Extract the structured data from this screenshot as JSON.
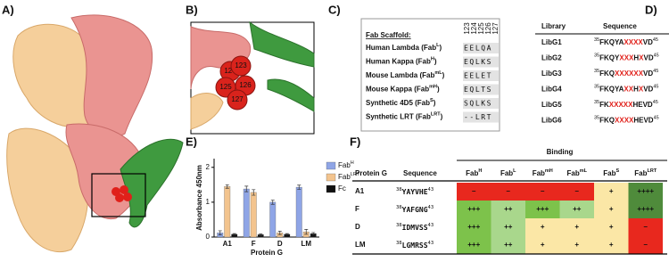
{
  "panels": {
    "a": "A)",
    "b": "B)",
    "c": "C)",
    "d": "D)",
    "e": "E)",
    "f": "F)"
  },
  "zoom_residues": [
    "123",
    "124",
    "125",
    "126",
    "127"
  ],
  "scaffold": {
    "title": "Fab Scaffold:",
    "positions": [
      "123",
      "124",
      "125",
      "126",
      "127"
    ],
    "rows": [
      {
        "text": "Human Lambda (Fab",
        "sup": "L",
        "close": ")",
        "residues": "EELQA"
      },
      {
        "text": "Human Kappa (Fab",
        "sup": "H",
        "close": ")",
        "residues": "EQLKS"
      },
      {
        "text": "Mouse Lambda (Fab",
        "sup": "mL",
        "close": ")",
        "residues": "EELET"
      },
      {
        "text": "Mouse Kappa (Fab",
        "sup": "mH",
        "close": ")",
        "residues": "EQLTS"
      },
      {
        "text": "Synthetic 4D5 (Fab",
        "sup": "S",
        "close": ")",
        "residues": "SQLKS"
      },
      {
        "text": "Synthetic LRT (Fab",
        "sup": "LRT",
        "close": ")",
        "residues": "--LRT"
      }
    ]
  },
  "library": {
    "headers": [
      "Library",
      "Sequence"
    ],
    "rows": [
      {
        "name": "LibG1",
        "pre": "35",
        "parts": [
          {
            "t": "FKQYA"
          },
          {
            "t": "XXXX",
            "red": true
          },
          {
            "t": "VD"
          }
        ],
        "post": "45"
      },
      {
        "name": "LibG2",
        "pre": "35",
        "parts": [
          {
            "t": "FKQY"
          },
          {
            "t": "XXX",
            "red": true
          },
          {
            "t": "H"
          },
          {
            "t": "X",
            "red": true
          },
          {
            "t": "VD"
          }
        ],
        "post": "45"
      },
      {
        "name": "LibG3",
        "pre": "35",
        "parts": [
          {
            "t": "FKQ"
          },
          {
            "t": "XXXXXX",
            "red": true
          },
          {
            "t": "VD"
          }
        ],
        "post": "45"
      },
      {
        "name": "LibG4",
        "pre": "35",
        "parts": [
          {
            "t": "FKQYA"
          },
          {
            "t": "XX",
            "red": true
          },
          {
            "t": "H"
          },
          {
            "t": "X",
            "red": true
          },
          {
            "t": "VD"
          }
        ],
        "post": "45"
      },
      {
        "name": "LibG5",
        "pre": "35",
        "parts": [
          {
            "t": "FK"
          },
          {
            "t": "XXXXX",
            "red": true
          },
          {
            "t": "HEVD"
          }
        ],
        "post": "45"
      },
      {
        "name": "LibG6",
        "pre": "35",
        "parts": [
          {
            "t": "FKQ"
          },
          {
            "t": "XXXX",
            "red": true
          },
          {
            "t": "HEVD"
          }
        ],
        "post": "45"
      }
    ]
  },
  "chart_data": {
    "type": "bar",
    "y_label": "Absorbance 450nm",
    "x_label": "Protein G",
    "categories": [
      "A1",
      "F",
      "D",
      "LM"
    ],
    "series": [
      {
        "name": "Fab",
        "sup": "H",
        "color": "#8fa5e6",
        "values": [
          0.12,
          1.38,
          1.0,
          1.43
        ],
        "errors": [
          0.06,
          0.08,
          0.06,
          0.06
        ]
      },
      {
        "name": "Fab",
        "sup": "LRT",
        "color": "#f3c48e",
        "values": [
          1.45,
          1.28,
          0.12,
          0.15
        ],
        "errors": [
          0.05,
          0.08,
          0.05,
          0.07
        ]
      },
      {
        "name": "Fc",
        "color": "#111111",
        "values": [
          0.08,
          0.07,
          0.08,
          0.1
        ],
        "errors": [
          0.02,
          0.02,
          0.02,
          0.03
        ]
      }
    ],
    "ylim": [
      0,
      2.25
    ],
    "yticks": [
      0,
      1,
      2
    ]
  },
  "binding": {
    "title": "Binding",
    "headers": [
      "Protein G",
      "Sequence"
    ],
    "columns": [
      {
        "t": "Fab",
        "sup": "H"
      },
      {
        "t": "Fab",
        "sup": "L"
      },
      {
        "t": "Fab",
        "sup": "mH"
      },
      {
        "t": "Fab",
        "sup": "mL"
      },
      {
        "t": "Fab",
        "sup": "S"
      },
      {
        "t": "Fab",
        "sup": "LRT"
      }
    ],
    "rows": [
      {
        "name": "A1",
        "pre": "38",
        "seq": "YAYVHE",
        "post": "43",
        "cells": [
          {
            "t": "–",
            "color": "#e8281e"
          },
          {
            "t": "–",
            "color": "#e8281e"
          },
          {
            "t": "–",
            "color": "#e8281e"
          },
          {
            "t": "–",
            "color": "#e8281e"
          },
          {
            "t": "+",
            "color": "#fbe7a6"
          },
          {
            "t": "++++",
            "color": "#4f8b3b"
          }
        ]
      },
      {
        "name": "F",
        "pre": "38",
        "seq": "YAFGNG",
        "post": "43",
        "cells": [
          {
            "t": "+++",
            "color": "#7dc24b"
          },
          {
            "t": "++",
            "color": "#a9d78c"
          },
          {
            "t": "+++",
            "color": "#7dc24b"
          },
          {
            "t": "++",
            "color": "#a9d78c"
          },
          {
            "t": "+",
            "color": "#fbe7a6"
          },
          {
            "t": "++++",
            "color": "#4f8b3b"
          }
        ]
      },
      {
        "name": "D",
        "pre": "38",
        "seq": "IDMVSS",
        "post": "43",
        "cells": [
          {
            "t": "+++",
            "color": "#7dc24b"
          },
          {
            "t": "++",
            "color": "#a9d78c"
          },
          {
            "t": "+",
            "color": "#fbe7a6"
          },
          {
            "t": "+",
            "color": "#fbe7a6"
          },
          {
            "t": "+",
            "color": "#fbe7a6"
          },
          {
            "t": "–",
            "color": "#e8281e"
          }
        ]
      },
      {
        "name": "LM",
        "pre": "38",
        "seq": "LGMRSS",
        "post": "43",
        "cells": [
          {
            "t": "+++",
            "color": "#7dc24b"
          },
          {
            "t": "++",
            "color": "#a9d78c"
          },
          {
            "t": "+",
            "color": "#fbe7a6"
          },
          {
            "t": "+",
            "color": "#fbe7a6"
          },
          {
            "t": "+",
            "color": "#fbe7a6"
          },
          {
            "t": "–",
            "color": "#e8281e"
          }
        ]
      }
    ]
  }
}
